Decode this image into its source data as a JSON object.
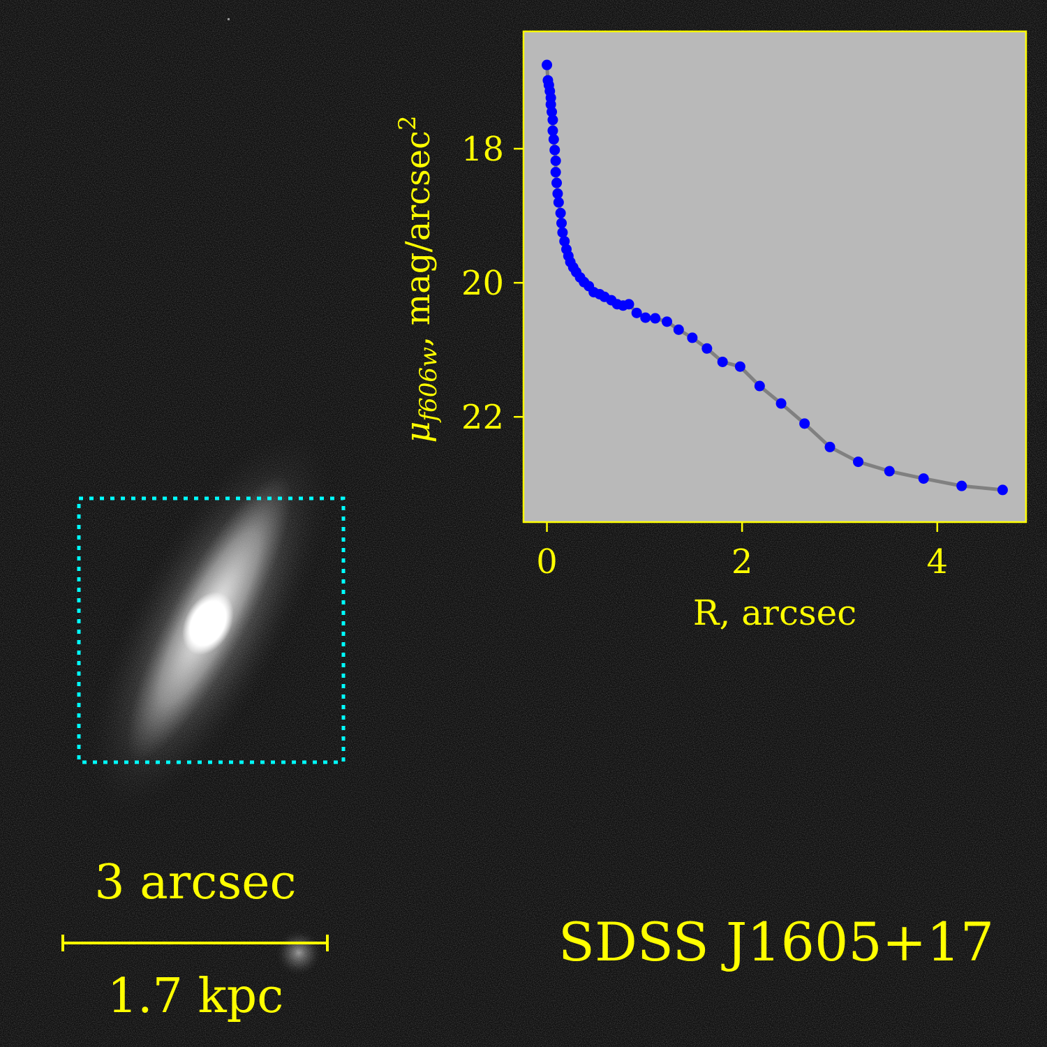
{
  "chart_data": {
    "type": "line",
    "xlabel": "R, arcsec",
    "ylabel": {
      "symbol": "μ",
      "subscript": "f606w",
      "unit": ", mag/arcsec",
      "power": "2"
    },
    "x": [
      0,
      0.01,
      0.02,
      0.03,
      0.04,
      0.04,
      0.05,
      0.06,
      0.06,
      0.07,
      0.08,
      0.09,
      0.09,
      0.1,
      0.11,
      0.12,
      0.14,
      0.15,
      0.16,
      0.18,
      0.2,
      0.22,
      0.24,
      0.27,
      0.3,
      0.34,
      0.38,
      0.43,
      0.48,
      0.54,
      0.59,
      0.66,
      0.72,
      0.78,
      0.84,
      0.92,
      1.01,
      1.11,
      1.23,
      1.35,
      1.49,
      1.64,
      1.8,
      1.98,
      2.18,
      2.4,
      2.64,
      2.9,
      3.19,
      3.51,
      3.86,
      4.25,
      4.67
    ],
    "values": [
      16.75,
      16.98,
      17.05,
      17.14,
      17.24,
      17.34,
      17.45,
      17.57,
      17.73,
      17.86,
      18.02,
      18.18,
      18.35,
      18.51,
      18.67,
      18.8,
      18.96,
      19.11,
      19.25,
      19.38,
      19.5,
      19.6,
      19.69,
      19.77,
      19.84,
      19.92,
      19.99,
      20.05,
      20.14,
      20.17,
      20.21,
      20.26,
      20.32,
      20.34,
      20.32,
      20.45,
      20.52,
      20.53,
      20.58,
      20.7,
      20.82,
      20.98,
      21.18,
      21.25,
      21.54,
      21.8,
      22.1,
      22.45,
      22.67,
      22.81,
      22.92,
      23.03,
      23.09
    ],
    "color": "#0000ff",
    "line_color": "#808080",
    "xlim": [
      -0.24,
      4.91
    ],
    "xticks": [
      0,
      2,
      4
    ],
    "ylim": [
      23.57,
      16.25
    ],
    "yticks": [
      18,
      20,
      22
    ]
  },
  "image": {
    "scale_angular": "3 arcsec",
    "scale_physical": "1.7 kpc",
    "object_name": "SDSS J1605+17"
  }
}
